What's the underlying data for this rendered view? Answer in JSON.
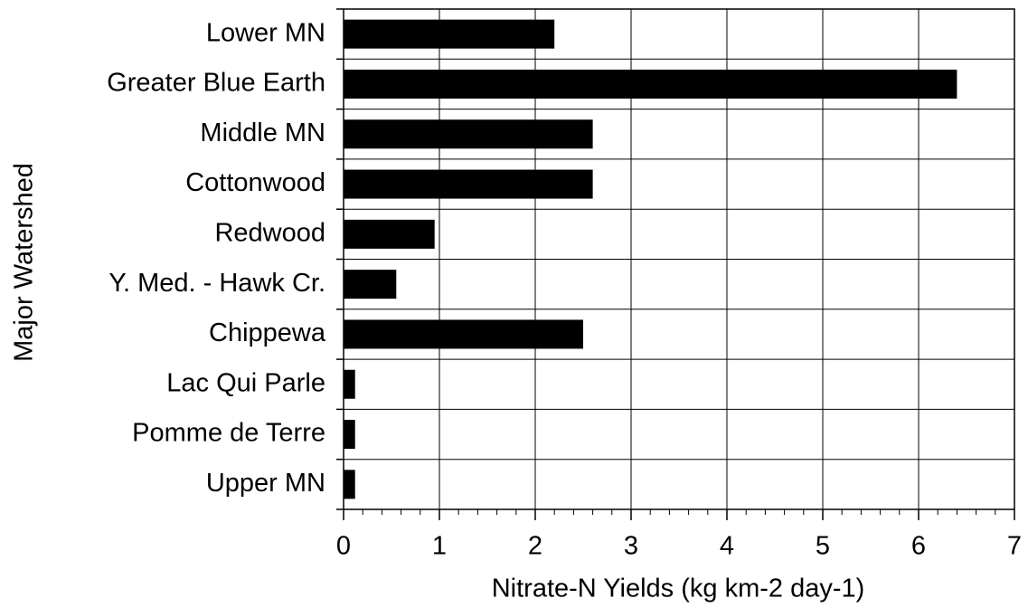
{
  "chart_data": {
    "type": "bar",
    "orientation": "horizontal",
    "x_label": "Nitrate-N Yields (kg km-2 day-1)",
    "y_label": "Major Watershed",
    "categories": [
      "Lower MN",
      "Greater Blue Earth",
      "Middle MN",
      "Cottonwood",
      "Redwood",
      "Y. Med. - Hawk Cr.",
      "Chippewa",
      "Lac Qui Parle",
      "Pomme de Terre",
      "Upper MN"
    ],
    "values": [
      2.2,
      6.4,
      2.6,
      2.6,
      0.95,
      0.55,
      2.5,
      0.12,
      0.12,
      0.12
    ],
    "color": "#000000",
    "xlim": [
      0,
      7
    ],
    "xticks": [
      0,
      1,
      2,
      3,
      4,
      5,
      6,
      7
    ],
    "grid": true
  }
}
